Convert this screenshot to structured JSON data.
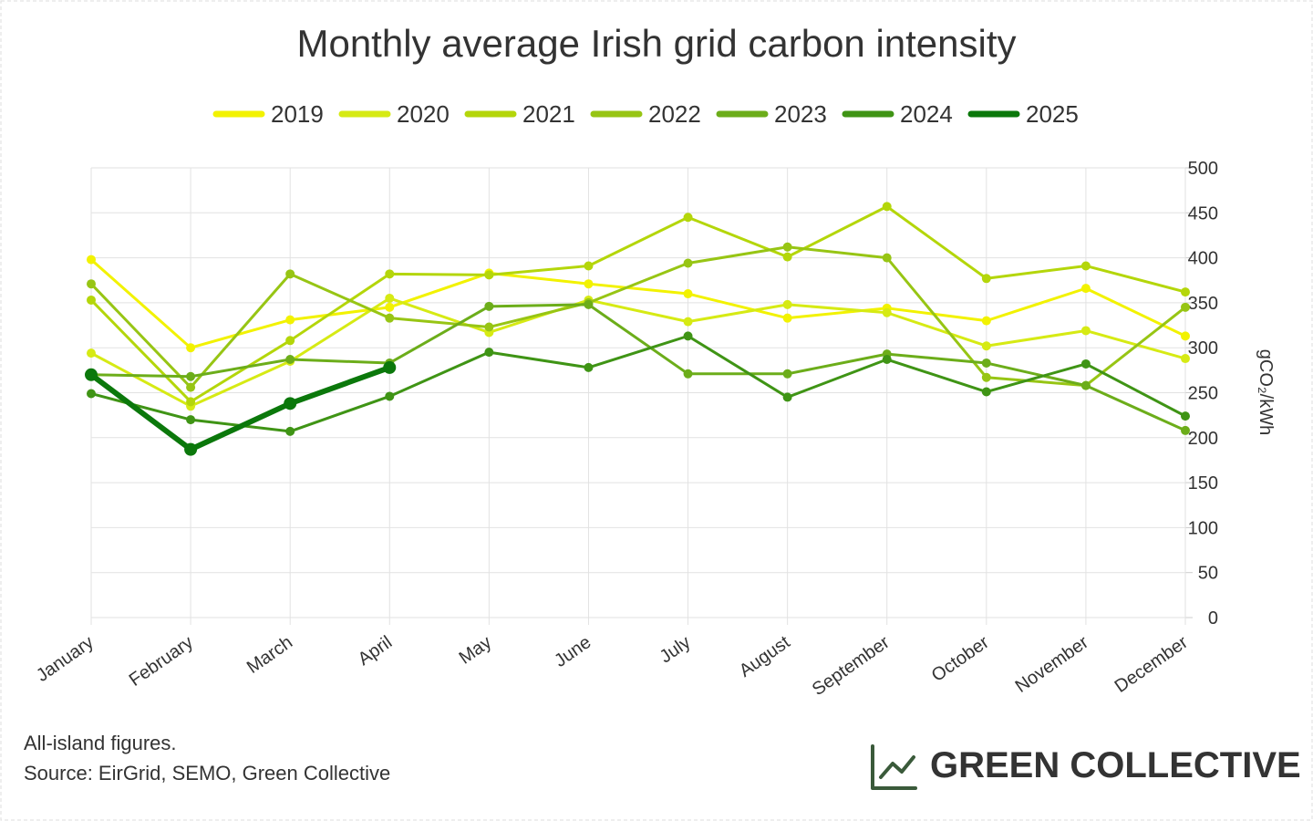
{
  "chart_data": {
    "type": "line",
    "title": "Monthly average Irish grid carbon intensity",
    "y_label": "gCO₂/kWh",
    "categories": [
      "January",
      "February",
      "March",
      "April",
      "May",
      "June",
      "July",
      "August",
      "September",
      "October",
      "November",
      "December"
    ],
    "series": [
      {
        "name": "2019",
        "color": "#f2f200",
        "values": [
          398,
          300,
          331,
          345,
          383,
          371,
          360,
          333,
          344,
          330,
          366,
          313
        ]
      },
      {
        "name": "2020",
        "color": "#d6ea14",
        "values": [
          294,
          235,
          285,
          355,
          317,
          353,
          329,
          348,
          339,
          302,
          319,
          288
        ]
      },
      {
        "name": "2021",
        "color": "#b4d60a",
        "values": [
          353,
          240,
          308,
          382,
          381,
          391,
          445,
          401,
          457,
          377,
          391,
          362
        ]
      },
      {
        "name": "2022",
        "color": "#97c514",
        "values": [
          371,
          256,
          382,
          333,
          323,
          350,
          394,
          412,
          400,
          267,
          258,
          345
        ]
      },
      {
        "name": "2023",
        "color": "#6cad1a",
        "values": [
          270,
          268,
          287,
          283,
          346,
          348,
          271,
          271,
          293,
          283,
          258,
          208
        ]
      },
      {
        "name": "2024",
        "color": "#3f9415",
        "values": [
          249,
          220,
          207,
          246,
          295,
          278,
          313,
          245,
          287,
          251,
          282,
          224
        ]
      },
      {
        "name": "2025",
        "color": "#0b780b",
        "values": [
          270,
          187,
          238,
          278,
          null,
          null,
          null,
          null,
          null,
          null,
          null,
          null
        ]
      }
    ],
    "ylim": [
      0,
      500
    ],
    "yticks": [
      0,
      50,
      100,
      150,
      200,
      250,
      300,
      350,
      400,
      450,
      500
    ],
    "grid": true,
    "legend": "top",
    "notes": [
      "All-island figures.",
      "Source: EirGrid, SEMO, Green Collective"
    ],
    "brand": "GREEN COLLECTIVE"
  }
}
